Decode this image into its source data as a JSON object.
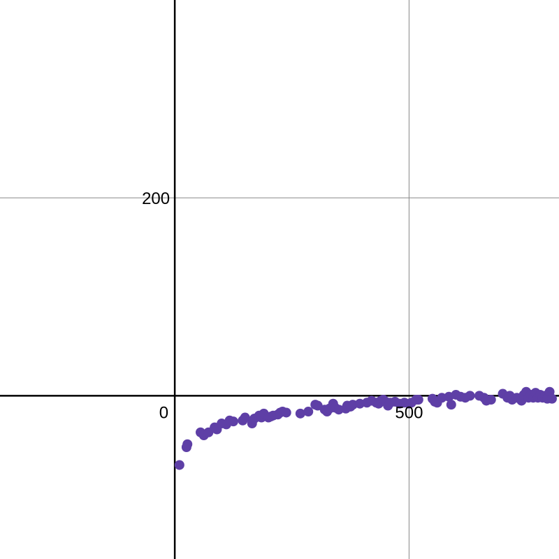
{
  "chart_data": {
    "type": "scatter",
    "title": "",
    "xlabel": "",
    "ylabel": "",
    "xlim": [
      -373,
      820
    ],
    "ylim": [
      -165,
      400
    ],
    "grid": true,
    "x_ticks": [
      {
        "value": 0,
        "label": "0"
      },
      {
        "value": 500,
        "label": "500"
      }
    ],
    "y_ticks": [
      {
        "value": 200,
        "label": "200"
      }
    ],
    "colors": {
      "points": "#5e3fa6",
      "axis": "#000000",
      "grid": "#888888",
      "background": "#ffffff"
    },
    "series": [
      {
        "points": [
          [
            10,
            -70
          ],
          [
            25,
            -52
          ],
          [
            27,
            -49
          ],
          [
            55,
            -37
          ],
          [
            62,
            -40
          ],
          [
            72,
            -37
          ],
          [
            85,
            -32
          ],
          [
            90,
            -34
          ],
          [
            100,
            -28
          ],
          [
            110,
            -29
          ],
          [
            117,
            -25
          ],
          [
            125,
            -26
          ],
          [
            145,
            -25
          ],
          [
            150,
            -22
          ],
          [
            165,
            -28
          ],
          [
            170,
            -23
          ],
          [
            180,
            -20
          ],
          [
            185,
            -22
          ],
          [
            190,
            -18
          ],
          [
            200,
            -22
          ],
          [
            205,
            -21
          ],
          [
            210,
            -20
          ],
          [
            220,
            -19
          ],
          [
            225,
            -17
          ],
          [
            230,
            -16
          ],
          [
            238,
            -17
          ],
          [
            268,
            -18
          ],
          [
            285,
            -16
          ],
          [
            300,
            -9
          ],
          [
            305,
            -10
          ],
          [
            320,
            -14
          ],
          [
            325,
            -16
          ],
          [
            330,
            -13
          ],
          [
            338,
            -8
          ],
          [
            342,
            -12
          ],
          [
            350,
            -14
          ],
          [
            365,
            -13
          ],
          [
            368,
            -10
          ],
          [
            375,
            -11
          ],
          [
            380,
            -9
          ],
          [
            395,
            -8
          ],
          [
            410,
            -7
          ],
          [
            420,
            -5
          ],
          [
            430,
            -7
          ],
          [
            435,
            -8
          ],
          [
            440,
            -5
          ],
          [
            445,
            -4
          ],
          [
            450,
            -6
          ],
          [
            455,
            -10
          ],
          [
            460,
            -7
          ],
          [
            470,
            -6
          ],
          [
            480,
            -8
          ],
          [
            490,
            -7
          ],
          [
            500,
            -8
          ],
          [
            505,
            -7
          ],
          [
            515,
            -4
          ],
          [
            520,
            -4
          ],
          [
            550,
            -3
          ],
          [
            555,
            -6
          ],
          [
            560,
            -7
          ],
          [
            570,
            -2
          ],
          [
            585,
            -1
          ],
          [
            590,
            -9
          ],
          [
            600,
            1
          ],
          [
            610,
            -1
          ],
          [
            620,
            -2
          ],
          [
            630,
            0
          ],
          [
            650,
            0
          ],
          [
            660,
            -2
          ],
          [
            665,
            -5
          ],
          [
            675,
            -4
          ],
          [
            700,
            2
          ],
          [
            710,
            -2
          ],
          [
            715,
            0
          ],
          [
            720,
            -4
          ],
          [
            730,
            -2
          ],
          [
            740,
            -5
          ],
          [
            745,
            1
          ],
          [
            750,
            4
          ],
          [
            755,
            -2
          ],
          [
            760,
            1
          ],
          [
            765,
            -2
          ],
          [
            770,
            3
          ],
          [
            775,
            -2
          ],
          [
            780,
            1
          ],
          [
            785,
            -2
          ],
          [
            790,
            0
          ],
          [
            795,
            -3
          ],
          [
            800,
            4
          ],
          [
            805,
            -3
          ]
        ]
      }
    ]
  }
}
